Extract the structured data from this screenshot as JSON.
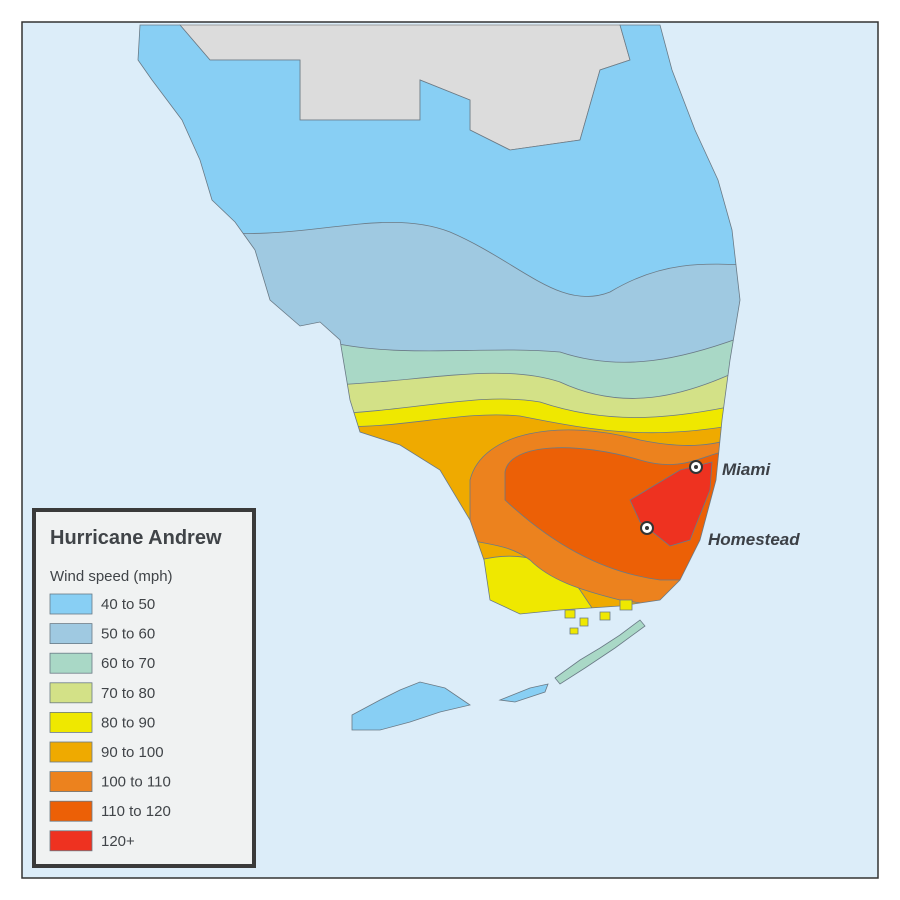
{
  "legend": {
    "title": "Hurricane Andrew",
    "subtitle": "Wind speed (mph)",
    "items": [
      {
        "label": "40 to 50",
        "color": "#88cff4"
      },
      {
        "label": "50 to 60",
        "color": "#9fc9e1"
      },
      {
        "label": "60 to 70",
        "color": "#a9d8c6"
      },
      {
        "label": "70 to 80",
        "color": "#d3e187"
      },
      {
        "label": "80 to 90",
        "color": "#efe800"
      },
      {
        "label": "90 to 100",
        "color": "#efaa00"
      },
      {
        "label": "100 to 110",
        "color": "#ec821e"
      },
      {
        "label": "110 to 120",
        "color": "#ec6006"
      },
      {
        "label": "120+",
        "color": "#ee3220"
      }
    ]
  },
  "cities": [
    {
      "name": "Miami"
    },
    {
      "name": "Homestead"
    }
  ]
}
